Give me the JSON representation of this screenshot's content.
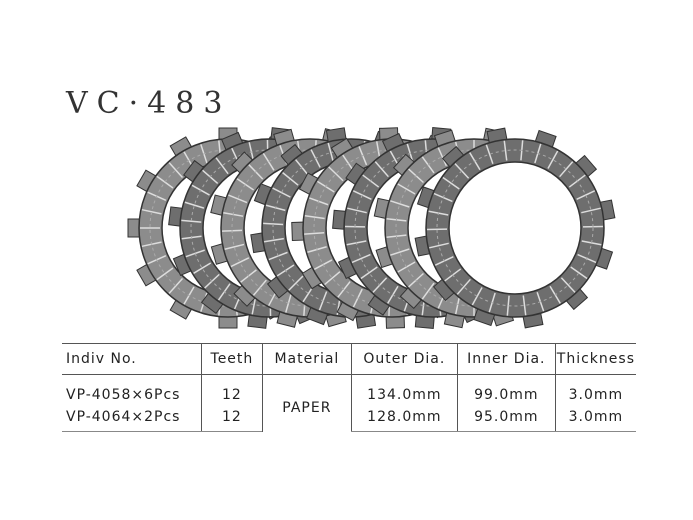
{
  "title": "VC·483",
  "table": {
    "headers": [
      "Indiv No.",
      "Teeth",
      "Material",
      "Outer Dia.",
      "Inner Dia.",
      "Thickness"
    ],
    "material": "PAPER",
    "rows": [
      [
        "VP-4058×6Pcs",
        "12",
        "134.0mm",
        "99.0mm",
        "3.0mm"
      ],
      [
        "VP-4064×2Pcs",
        "12",
        "128.0mm",
        "95.0mm",
        "3.0mm"
      ]
    ]
  }
}
